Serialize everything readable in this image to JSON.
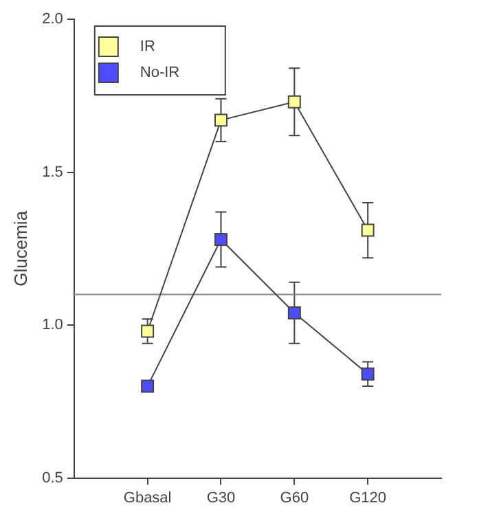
{
  "chart_data": {
    "type": "line",
    "ylabel": "Glucemia",
    "categories": [
      "Gbasal",
      "G30",
      "G60",
      "G120"
    ],
    "series": [
      {
        "name": "IR",
        "color": "#ffff99",
        "values": [
          0.98,
          1.67,
          1.73,
          1.31
        ],
        "errors": [
          0.04,
          0.07,
          0.11,
          0.09
        ]
      },
      {
        "name": "No-IR",
        "color": "#4d4dff",
        "values": [
          0.8,
          1.28,
          1.04,
          0.84
        ],
        "errors": [
          null,
          0.09,
          0.1,
          0.04
        ]
      }
    ],
    "ylim": [
      0.5,
      2.0
    ],
    "yticks": [
      {
        "value": 0.5,
        "label": "0.5"
      },
      {
        "value": 1.0,
        "label": "1.0"
      },
      {
        "value": 1.5,
        "label": "1.5"
      },
      {
        "value": 2.0,
        "label": "2.0"
      }
    ],
    "ref_lines": [
      {
        "axis": "y",
        "value": 1.1,
        "color": "#888888"
      }
    ],
    "grid": false,
    "legend": "top left",
    "marker": "square",
    "line_style": "solid"
  }
}
